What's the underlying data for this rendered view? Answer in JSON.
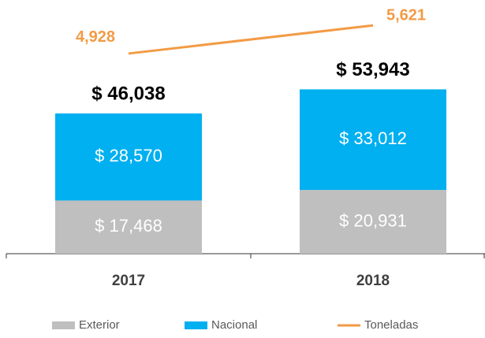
{
  "chart_data": {
    "type": "bar",
    "stacked": true,
    "categories": [
      "2017",
      "2018"
    ],
    "series": [
      {
        "name": "Exterior",
        "color": "#bfbfbf",
        "values": [
          17468,
          20931
        ],
        "value_labels": [
          "$ 17,468",
          "$ 20,931"
        ]
      },
      {
        "name": "Nacional",
        "color": "#00b0f0",
        "values": [
          28570,
          33012
        ],
        "value_labels": [
          "$ 28,570",
          "$ 33,012"
        ]
      },
      {
        "name": "Toneladas",
        "type": "line",
        "axis": "y2",
        "color": "#f39b45",
        "values": [
          4928,
          5621
        ],
        "value_labels": [
          "4,928",
          "5,621"
        ]
      }
    ],
    "totals": [
      46038,
      53943
    ],
    "total_labels": [
      "$ 46,038",
      "$ 53,943"
    ],
    "ylim": [
      0,
      60000
    ],
    "y2lim": [
      0,
      4500
    ],
    "legend": "bottom"
  }
}
